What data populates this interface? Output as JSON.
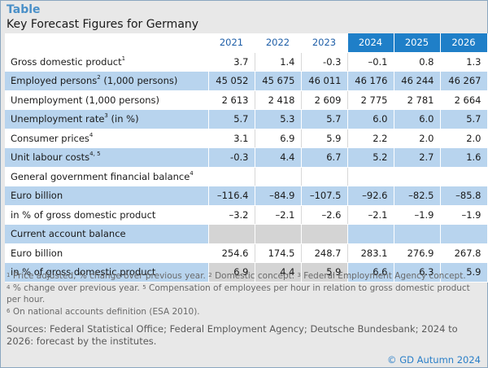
{
  "label": "Table",
  "title": "Key Forecast Figures for Germany",
  "years": [
    "2021",
    "2022",
    "2023",
    "2024",
    "2025",
    "2026"
  ],
  "rows": [
    {
      "label": "Gross domestic product",
      "sup": "1",
      "unit": "",
      "values": [
        "3.7",
        "1.4",
        "-0.3",
        "–0.1",
        "0.8",
        "1.3"
      ]
    },
    {
      "label": "Employed persons",
      "sup": "2",
      "unit": " (1,000 persons)",
      "values": [
        "45 052",
        "45 675",
        "46 011",
        "46 176",
        "46 244",
        "46 267"
      ]
    },
    {
      "label": "Unemployment (1,000 persons)",
      "sup": "",
      "unit": "",
      "values": [
        "2 613",
        "2 418",
        "2 609",
        "2 775",
        "2 781",
        "2 664"
      ]
    },
    {
      "label": "Unemployment rate",
      "sup": "3",
      "unit": " (in %)",
      "values": [
        "5.7",
        "5.3",
        "5.7",
        "6.0",
        "6.0",
        "5.7"
      ]
    },
    {
      "label": "Consumer prices",
      "sup": "4",
      "unit": "",
      "values": [
        "3.1",
        "6.9",
        "5.9",
        "2.2",
        "2.0",
        "2.0"
      ]
    },
    {
      "label": "Unit labour costs",
      "sup": "4, 5",
      "unit": "",
      "values": [
        "-0.3",
        "4.4",
        "6.7",
        "5.2",
        "2.7",
        "1.6"
      ]
    },
    {
      "label": "General government financial balance",
      "sup": "4",
      "unit": "",
      "values": []
    },
    {
      "label": "Euro billion",
      "sup": "",
      "unit": "",
      "values": [
        "–116.4",
        "–84.9",
        "–107.5",
        "–92.6",
        "–82.5",
        "–85.8"
      ]
    },
    {
      "label": "in % of gross domestic product",
      "sup": "",
      "unit": "",
      "values": [
        "–3.2",
        "–2.1",
        "–2.6",
        "–2.1",
        "–1.9",
        "–1.9"
      ]
    },
    {
      "label": "Current account balance",
      "sup": "",
      "unit": "",
      "values": []
    },
    {
      "label": "Euro billion",
      "sup": "",
      "unit": "",
      "values": [
        "254.6",
        "174.5",
        "248.7",
        "283.1",
        "276.9",
        "267.8"
      ]
    },
    {
      "label": "in % of gross domestic product",
      "sup": "",
      "unit": "",
      "values": [
        "6.9",
        "4.4",
        "5.9",
        "6.6",
        "6.3",
        "5.9"
      ]
    }
  ],
  "footnotes": {
    "n1": "Price adjusted, % change over previous year.",
    "n2": "Domestic concept.",
    "n3": "Federal Employment Agency concept.",
    "n4": "% change over previous year.",
    "n5": "Compensation of employees per hour in relation to gross domestic product per hour.",
    "n6": "On national accounts definition (ESA 2010)."
  },
  "sources": "Sources: Federal Statistical Office; Federal Employment Agency; Deutsche Bundesbank; 2024 to 2026: forecast by the institutes.",
  "copyright": "© GD Autumn 2024"
}
